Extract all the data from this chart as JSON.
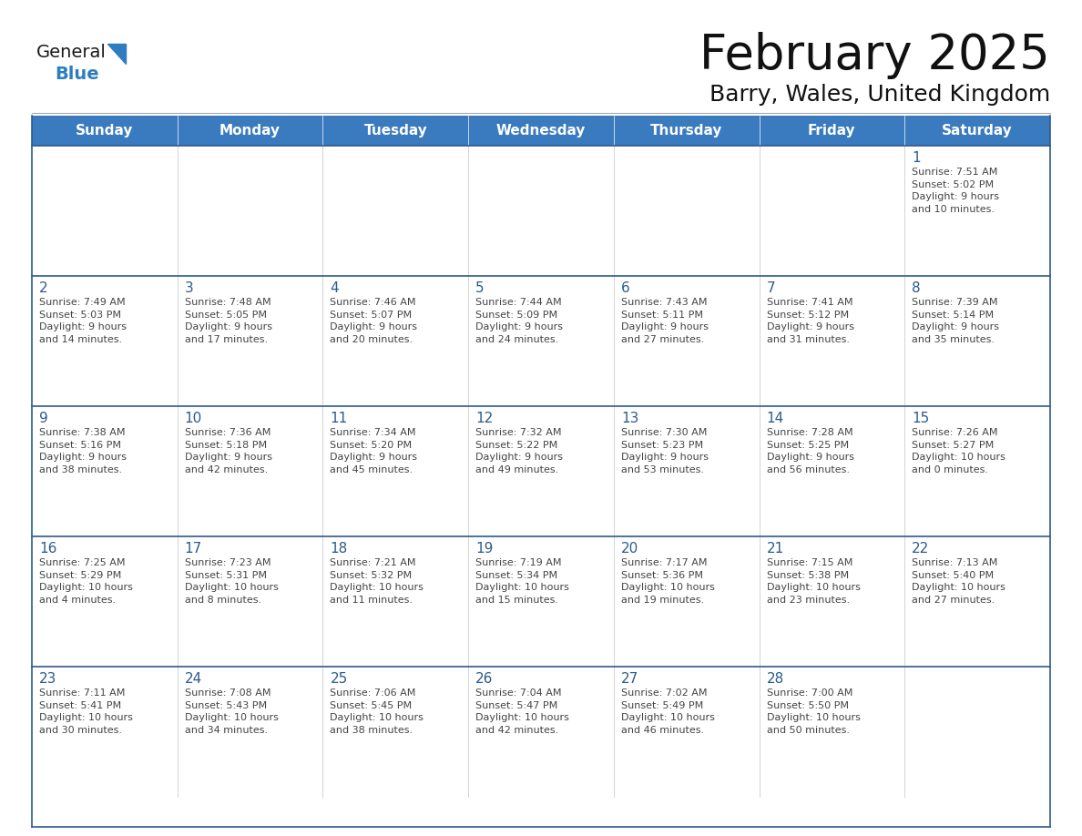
{
  "title": "February 2025",
  "subtitle": "Barry, Wales, United Kingdom",
  "header_bg": "#3a7abf",
  "header_text_color": "#FFFFFF",
  "cell_bg": "#FFFFFF",
  "row_border_color": "#2d5a8e",
  "col_border_color": "#cccccc",
  "day_number_color": "#2d5a8e",
  "cell_text_color": "#444444",
  "days_of_week": [
    "Sunday",
    "Monday",
    "Tuesday",
    "Wednesday",
    "Thursday",
    "Friday",
    "Saturday"
  ],
  "logo_general_color": "#1a1a1a",
  "logo_blue_color": "#2E7DC0",
  "weeks": [
    [
      {
        "day": null,
        "info": null
      },
      {
        "day": null,
        "info": null
      },
      {
        "day": null,
        "info": null
      },
      {
        "day": null,
        "info": null
      },
      {
        "day": null,
        "info": null
      },
      {
        "day": null,
        "info": null
      },
      {
        "day": 1,
        "info": "Sunrise: 7:51 AM\nSunset: 5:02 PM\nDaylight: 9 hours\nand 10 minutes."
      }
    ],
    [
      {
        "day": 2,
        "info": "Sunrise: 7:49 AM\nSunset: 5:03 PM\nDaylight: 9 hours\nand 14 minutes."
      },
      {
        "day": 3,
        "info": "Sunrise: 7:48 AM\nSunset: 5:05 PM\nDaylight: 9 hours\nand 17 minutes."
      },
      {
        "day": 4,
        "info": "Sunrise: 7:46 AM\nSunset: 5:07 PM\nDaylight: 9 hours\nand 20 minutes."
      },
      {
        "day": 5,
        "info": "Sunrise: 7:44 AM\nSunset: 5:09 PM\nDaylight: 9 hours\nand 24 minutes."
      },
      {
        "day": 6,
        "info": "Sunrise: 7:43 AM\nSunset: 5:11 PM\nDaylight: 9 hours\nand 27 minutes."
      },
      {
        "day": 7,
        "info": "Sunrise: 7:41 AM\nSunset: 5:12 PM\nDaylight: 9 hours\nand 31 minutes."
      },
      {
        "day": 8,
        "info": "Sunrise: 7:39 AM\nSunset: 5:14 PM\nDaylight: 9 hours\nand 35 minutes."
      }
    ],
    [
      {
        "day": 9,
        "info": "Sunrise: 7:38 AM\nSunset: 5:16 PM\nDaylight: 9 hours\nand 38 minutes."
      },
      {
        "day": 10,
        "info": "Sunrise: 7:36 AM\nSunset: 5:18 PM\nDaylight: 9 hours\nand 42 minutes."
      },
      {
        "day": 11,
        "info": "Sunrise: 7:34 AM\nSunset: 5:20 PM\nDaylight: 9 hours\nand 45 minutes."
      },
      {
        "day": 12,
        "info": "Sunrise: 7:32 AM\nSunset: 5:22 PM\nDaylight: 9 hours\nand 49 minutes."
      },
      {
        "day": 13,
        "info": "Sunrise: 7:30 AM\nSunset: 5:23 PM\nDaylight: 9 hours\nand 53 minutes."
      },
      {
        "day": 14,
        "info": "Sunrise: 7:28 AM\nSunset: 5:25 PM\nDaylight: 9 hours\nand 56 minutes."
      },
      {
        "day": 15,
        "info": "Sunrise: 7:26 AM\nSunset: 5:27 PM\nDaylight: 10 hours\nand 0 minutes."
      }
    ],
    [
      {
        "day": 16,
        "info": "Sunrise: 7:25 AM\nSunset: 5:29 PM\nDaylight: 10 hours\nand 4 minutes."
      },
      {
        "day": 17,
        "info": "Sunrise: 7:23 AM\nSunset: 5:31 PM\nDaylight: 10 hours\nand 8 minutes."
      },
      {
        "day": 18,
        "info": "Sunrise: 7:21 AM\nSunset: 5:32 PM\nDaylight: 10 hours\nand 11 minutes."
      },
      {
        "day": 19,
        "info": "Sunrise: 7:19 AM\nSunset: 5:34 PM\nDaylight: 10 hours\nand 15 minutes."
      },
      {
        "day": 20,
        "info": "Sunrise: 7:17 AM\nSunset: 5:36 PM\nDaylight: 10 hours\nand 19 minutes."
      },
      {
        "day": 21,
        "info": "Sunrise: 7:15 AM\nSunset: 5:38 PM\nDaylight: 10 hours\nand 23 minutes."
      },
      {
        "day": 22,
        "info": "Sunrise: 7:13 AM\nSunset: 5:40 PM\nDaylight: 10 hours\nand 27 minutes."
      }
    ],
    [
      {
        "day": 23,
        "info": "Sunrise: 7:11 AM\nSunset: 5:41 PM\nDaylight: 10 hours\nand 30 minutes."
      },
      {
        "day": 24,
        "info": "Sunrise: 7:08 AM\nSunset: 5:43 PM\nDaylight: 10 hours\nand 34 minutes."
      },
      {
        "day": 25,
        "info": "Sunrise: 7:06 AM\nSunset: 5:45 PM\nDaylight: 10 hours\nand 38 minutes."
      },
      {
        "day": 26,
        "info": "Sunrise: 7:04 AM\nSunset: 5:47 PM\nDaylight: 10 hours\nand 42 minutes."
      },
      {
        "day": 27,
        "info": "Sunrise: 7:02 AM\nSunset: 5:49 PM\nDaylight: 10 hours\nand 46 minutes."
      },
      {
        "day": 28,
        "info": "Sunrise: 7:00 AM\nSunset: 5:50 PM\nDaylight: 10 hours\nand 50 minutes."
      },
      {
        "day": null,
        "info": null
      }
    ]
  ]
}
